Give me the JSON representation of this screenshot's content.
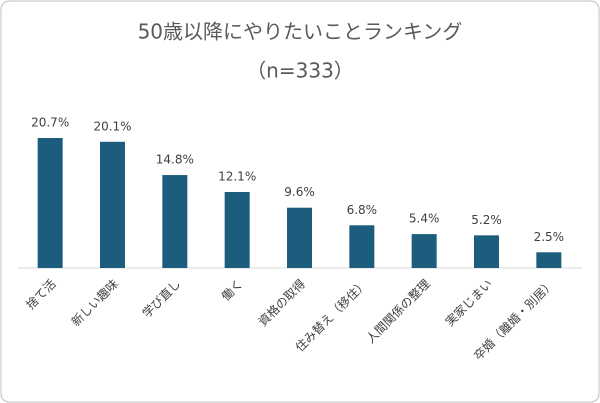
{
  "chart_data": {
    "type": "bar",
    "title": "50歳以降にやりたいことランキング",
    "subtitle": "（n=333）",
    "categories": [
      "捨て活",
      "新しい趣味",
      "学び直し",
      "働く",
      "資格の取得",
      "住み替え（移住）",
      "人間関係の整理",
      "実家じまい",
      "卒婚（離婚・別居）"
    ],
    "values": [
      20.7,
      20.1,
      14.8,
      12.1,
      9.6,
      6.8,
      5.4,
      5.2,
      2.5
    ],
    "value_labels": [
      "20.7%",
      "20.1%",
      "14.8%",
      "12.1%",
      "9.6%",
      "6.8%",
      "5.4%",
      "5.2%",
      "2.5%"
    ],
    "color": "#1c5d7e"
  }
}
